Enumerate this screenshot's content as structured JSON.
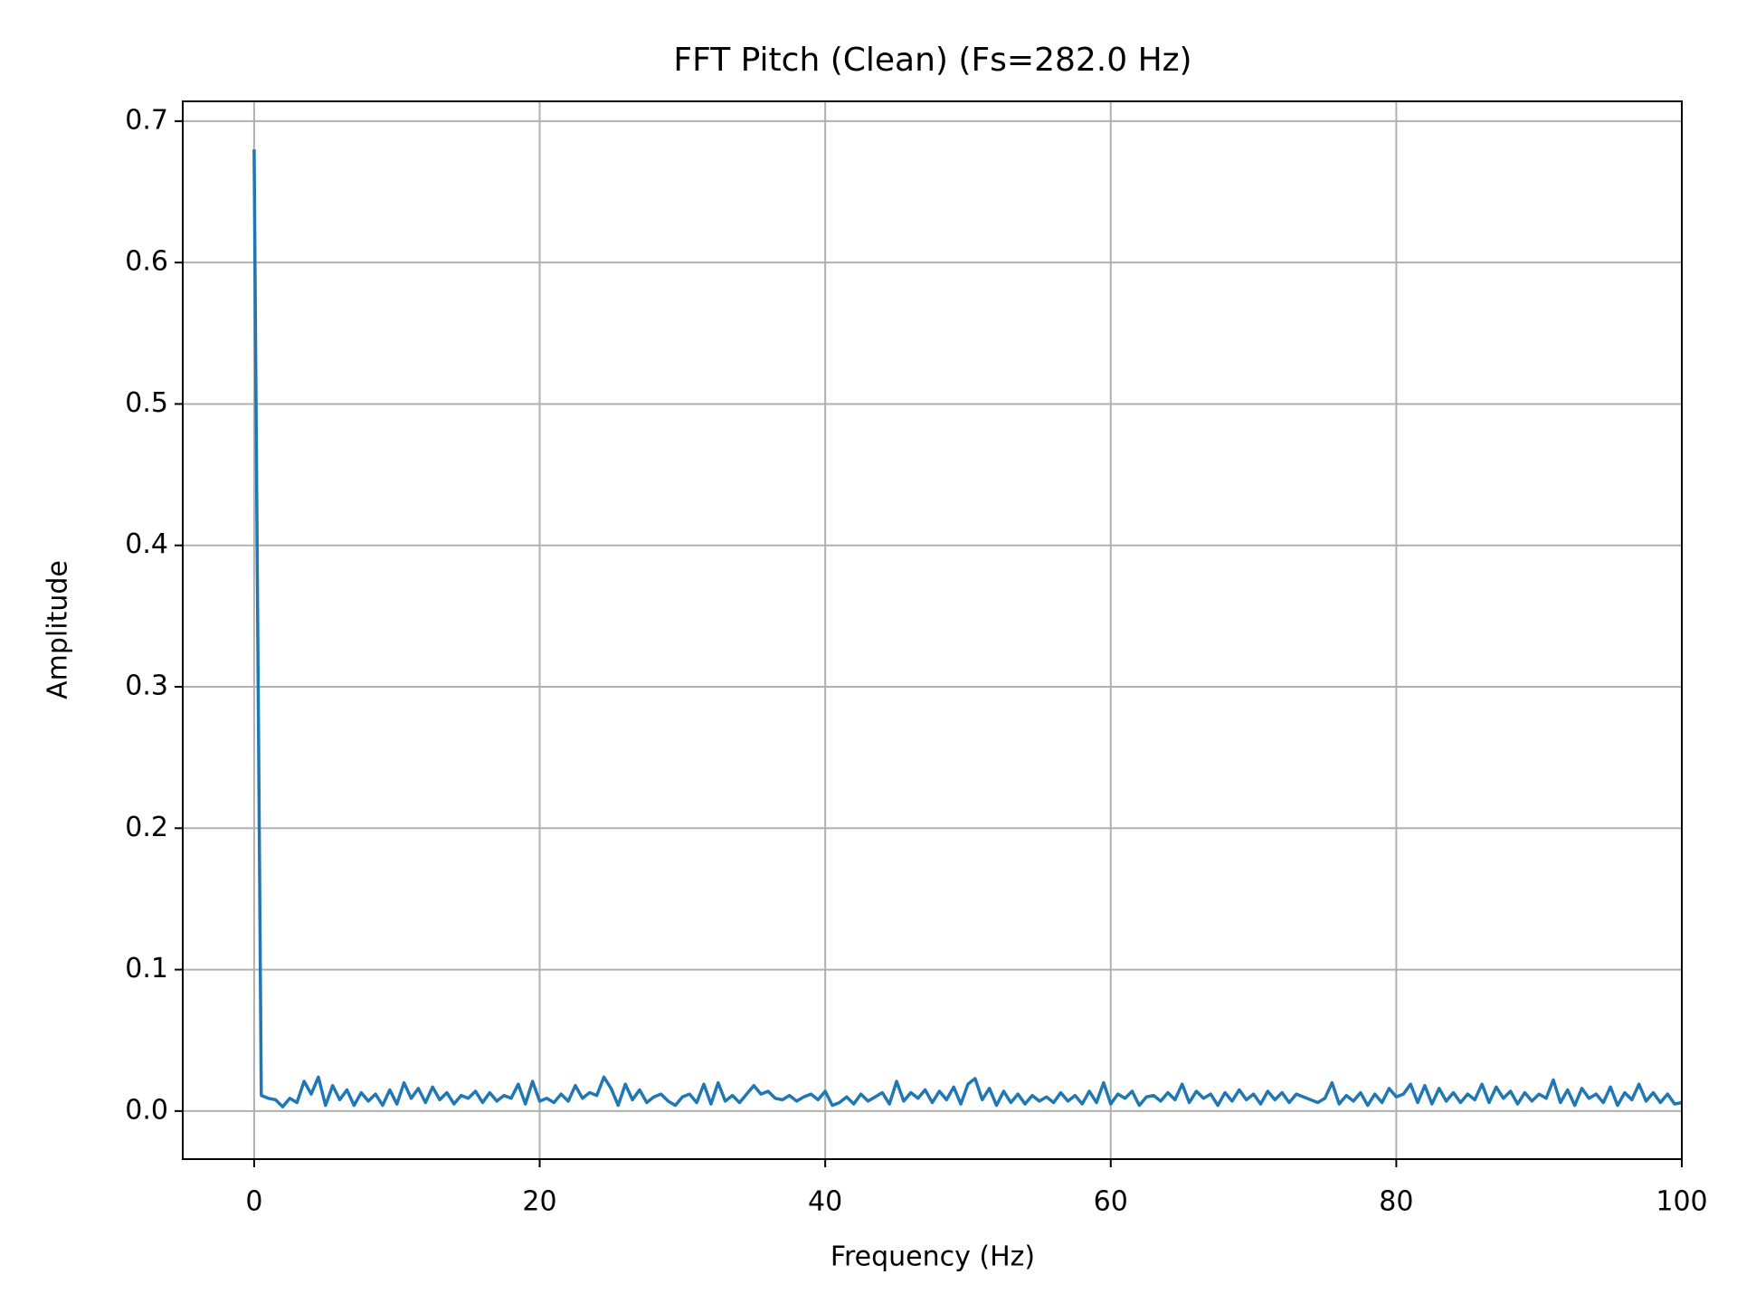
{
  "chart_data": {
    "type": "line",
    "title": "FFT Pitch (Clean) (Fs=282.0 Hz)",
    "x_label": "Frequency (Hz)",
    "y_label": "Amplitude",
    "x": [
      0,
      0.5,
      1,
      1.5,
      2,
      2.5,
      3,
      3.5,
      4,
      4.5,
      5,
      5.5,
      6,
      6.5,
      7,
      7.5,
      8,
      8.5,
      9,
      9.5,
      10,
      10.5,
      11,
      11.5,
      12,
      12.5,
      13,
      13.5,
      14,
      14.5,
      15,
      15.5,
      16,
      16.5,
      17,
      17.5,
      18,
      18.5,
      19,
      19.5,
      20,
      20.5,
      21,
      21.5,
      22,
      22.5,
      23,
      23.5,
      24,
      24.5,
      25,
      25.5,
      26,
      26.5,
      27,
      27.5,
      28,
      28.5,
      29,
      29.5,
      30,
      30.5,
      31,
      31.5,
      32,
      32.5,
      33,
      33.5,
      34,
      34.5,
      35,
      35.5,
      36,
      36.5,
      37,
      37.5,
      38,
      38.5,
      39,
      39.5,
      40,
      40.5,
      41,
      41.5,
      42,
      42.5,
      43,
      43.5,
      44,
      44.5,
      45,
      45.5,
      46,
      46.5,
      47,
      47.5,
      48,
      48.5,
      49,
      49.5,
      50,
      50.5,
      51,
      51.5,
      52,
      52.5,
      53,
      53.5,
      54,
      54.5,
      55,
      55.5,
      56,
      56.5,
      57,
      57.5,
      58,
      58.5,
      59,
      59.5,
      60,
      60.5,
      61,
      61.5,
      62,
      62.5,
      63,
      63.5,
      64,
      64.5,
      65,
      65.5,
      66,
      66.5,
      67,
      67.5,
      68,
      68.5,
      69,
      69.5,
      70,
      70.5,
      71,
      71.5,
      72,
      72.5,
      73,
      73.5,
      74,
      74.5,
      75,
      75.5,
      76,
      76.5,
      77,
      77.5,
      78,
      78.5,
      79,
      79.5,
      80,
      80.5,
      81,
      81.5,
      82,
      82.5,
      83,
      83.5,
      84,
      84.5,
      85,
      85.5,
      86,
      86.5,
      87,
      87.5,
      88,
      88.5,
      89,
      89.5,
      90,
      90.5,
      91,
      91.5,
      92,
      92.5,
      93,
      93.5,
      94,
      94.5,
      95,
      95.5,
      96,
      96.5,
      97,
      97.5,
      98,
      98.5,
      99,
      99.5,
      100
    ],
    "values": [
      0.68,
      0.011,
      0.009,
      0.008,
      0.003,
      0.009,
      0.006,
      0.021,
      0.012,
      0.024,
      0.004,
      0.018,
      0.008,
      0.015,
      0.004,
      0.013,
      0.007,
      0.012,
      0.004,
      0.015,
      0.005,
      0.02,
      0.009,
      0.016,
      0.006,
      0.017,
      0.008,
      0.013,
      0.005,
      0.011,
      0.009,
      0.014,
      0.006,
      0.013,
      0.007,
      0.011,
      0.009,
      0.019,
      0.005,
      0.021,
      0.007,
      0.009,
      0.006,
      0.012,
      0.007,
      0.018,
      0.009,
      0.013,
      0.011,
      0.024,
      0.016,
      0.004,
      0.019,
      0.008,
      0.015,
      0.006,
      0.01,
      0.012,
      0.007,
      0.004,
      0.01,
      0.012,
      0.006,
      0.019,
      0.005,
      0.02,
      0.007,
      0.011,
      0.006,
      0.012,
      0.018,
      0.012,
      0.014,
      0.009,
      0.008,
      0.011,
      0.007,
      0.01,
      0.012,
      0.008,
      0.014,
      0.004,
      0.006,
      0.01,
      0.005,
      0.012,
      0.007,
      0.01,
      0.013,
      0.005,
      0.021,
      0.007,
      0.013,
      0.009,
      0.015,
      0.006,
      0.014,
      0.008,
      0.017,
      0.005,
      0.019,
      0.023,
      0.008,
      0.016,
      0.004,
      0.014,
      0.006,
      0.012,
      0.005,
      0.011,
      0.007,
      0.01,
      0.006,
      0.013,
      0.007,
      0.011,
      0.005,
      0.014,
      0.006,
      0.02,
      0.005,
      0.012,
      0.009,
      0.014,
      0.004,
      0.01,
      0.011,
      0.007,
      0.013,
      0.008,
      0.019,
      0.006,
      0.014,
      0.009,
      0.012,
      0.004,
      0.013,
      0.007,
      0.015,
      0.008,
      0.012,
      0.005,
      0.014,
      0.008,
      0.013,
      0.006,
      0.012,
      0.01,
      0.008,
      0.006,
      0.009,
      0.02,
      0.005,
      0.011,
      0.007,
      0.013,
      0.004,
      0.012,
      0.006,
      0.016,
      0.01,
      0.012,
      0.019,
      0.006,
      0.018,
      0.005,
      0.016,
      0.007,
      0.013,
      0.006,
      0.012,
      0.008,
      0.019,
      0.006,
      0.017,
      0.009,
      0.014,
      0.005,
      0.013,
      0.007,
      0.012,
      0.009,
      0.022,
      0.006,
      0.015,
      0.004,
      0.016,
      0.009,
      0.012,
      0.006,
      0.017,
      0.004,
      0.013,
      0.008,
      0.019,
      0.007,
      0.013,
      0.006,
      0.012,
      0.005,
      0.006
    ],
    "color": "#1f77b4",
    "xlim": [
      -5,
      100
    ],
    "xticks": [
      0,
      20,
      40,
      60,
      80,
      100
    ],
    "ylim": [
      -0.034,
      0.714
    ],
    "yticks": [
      {
        "value": 0,
        "label": "0.0"
      },
      0.1,
      0.2,
      0.3,
      0.4,
      0.5,
      0.6,
      0.7
    ],
    "grid": true
  }
}
